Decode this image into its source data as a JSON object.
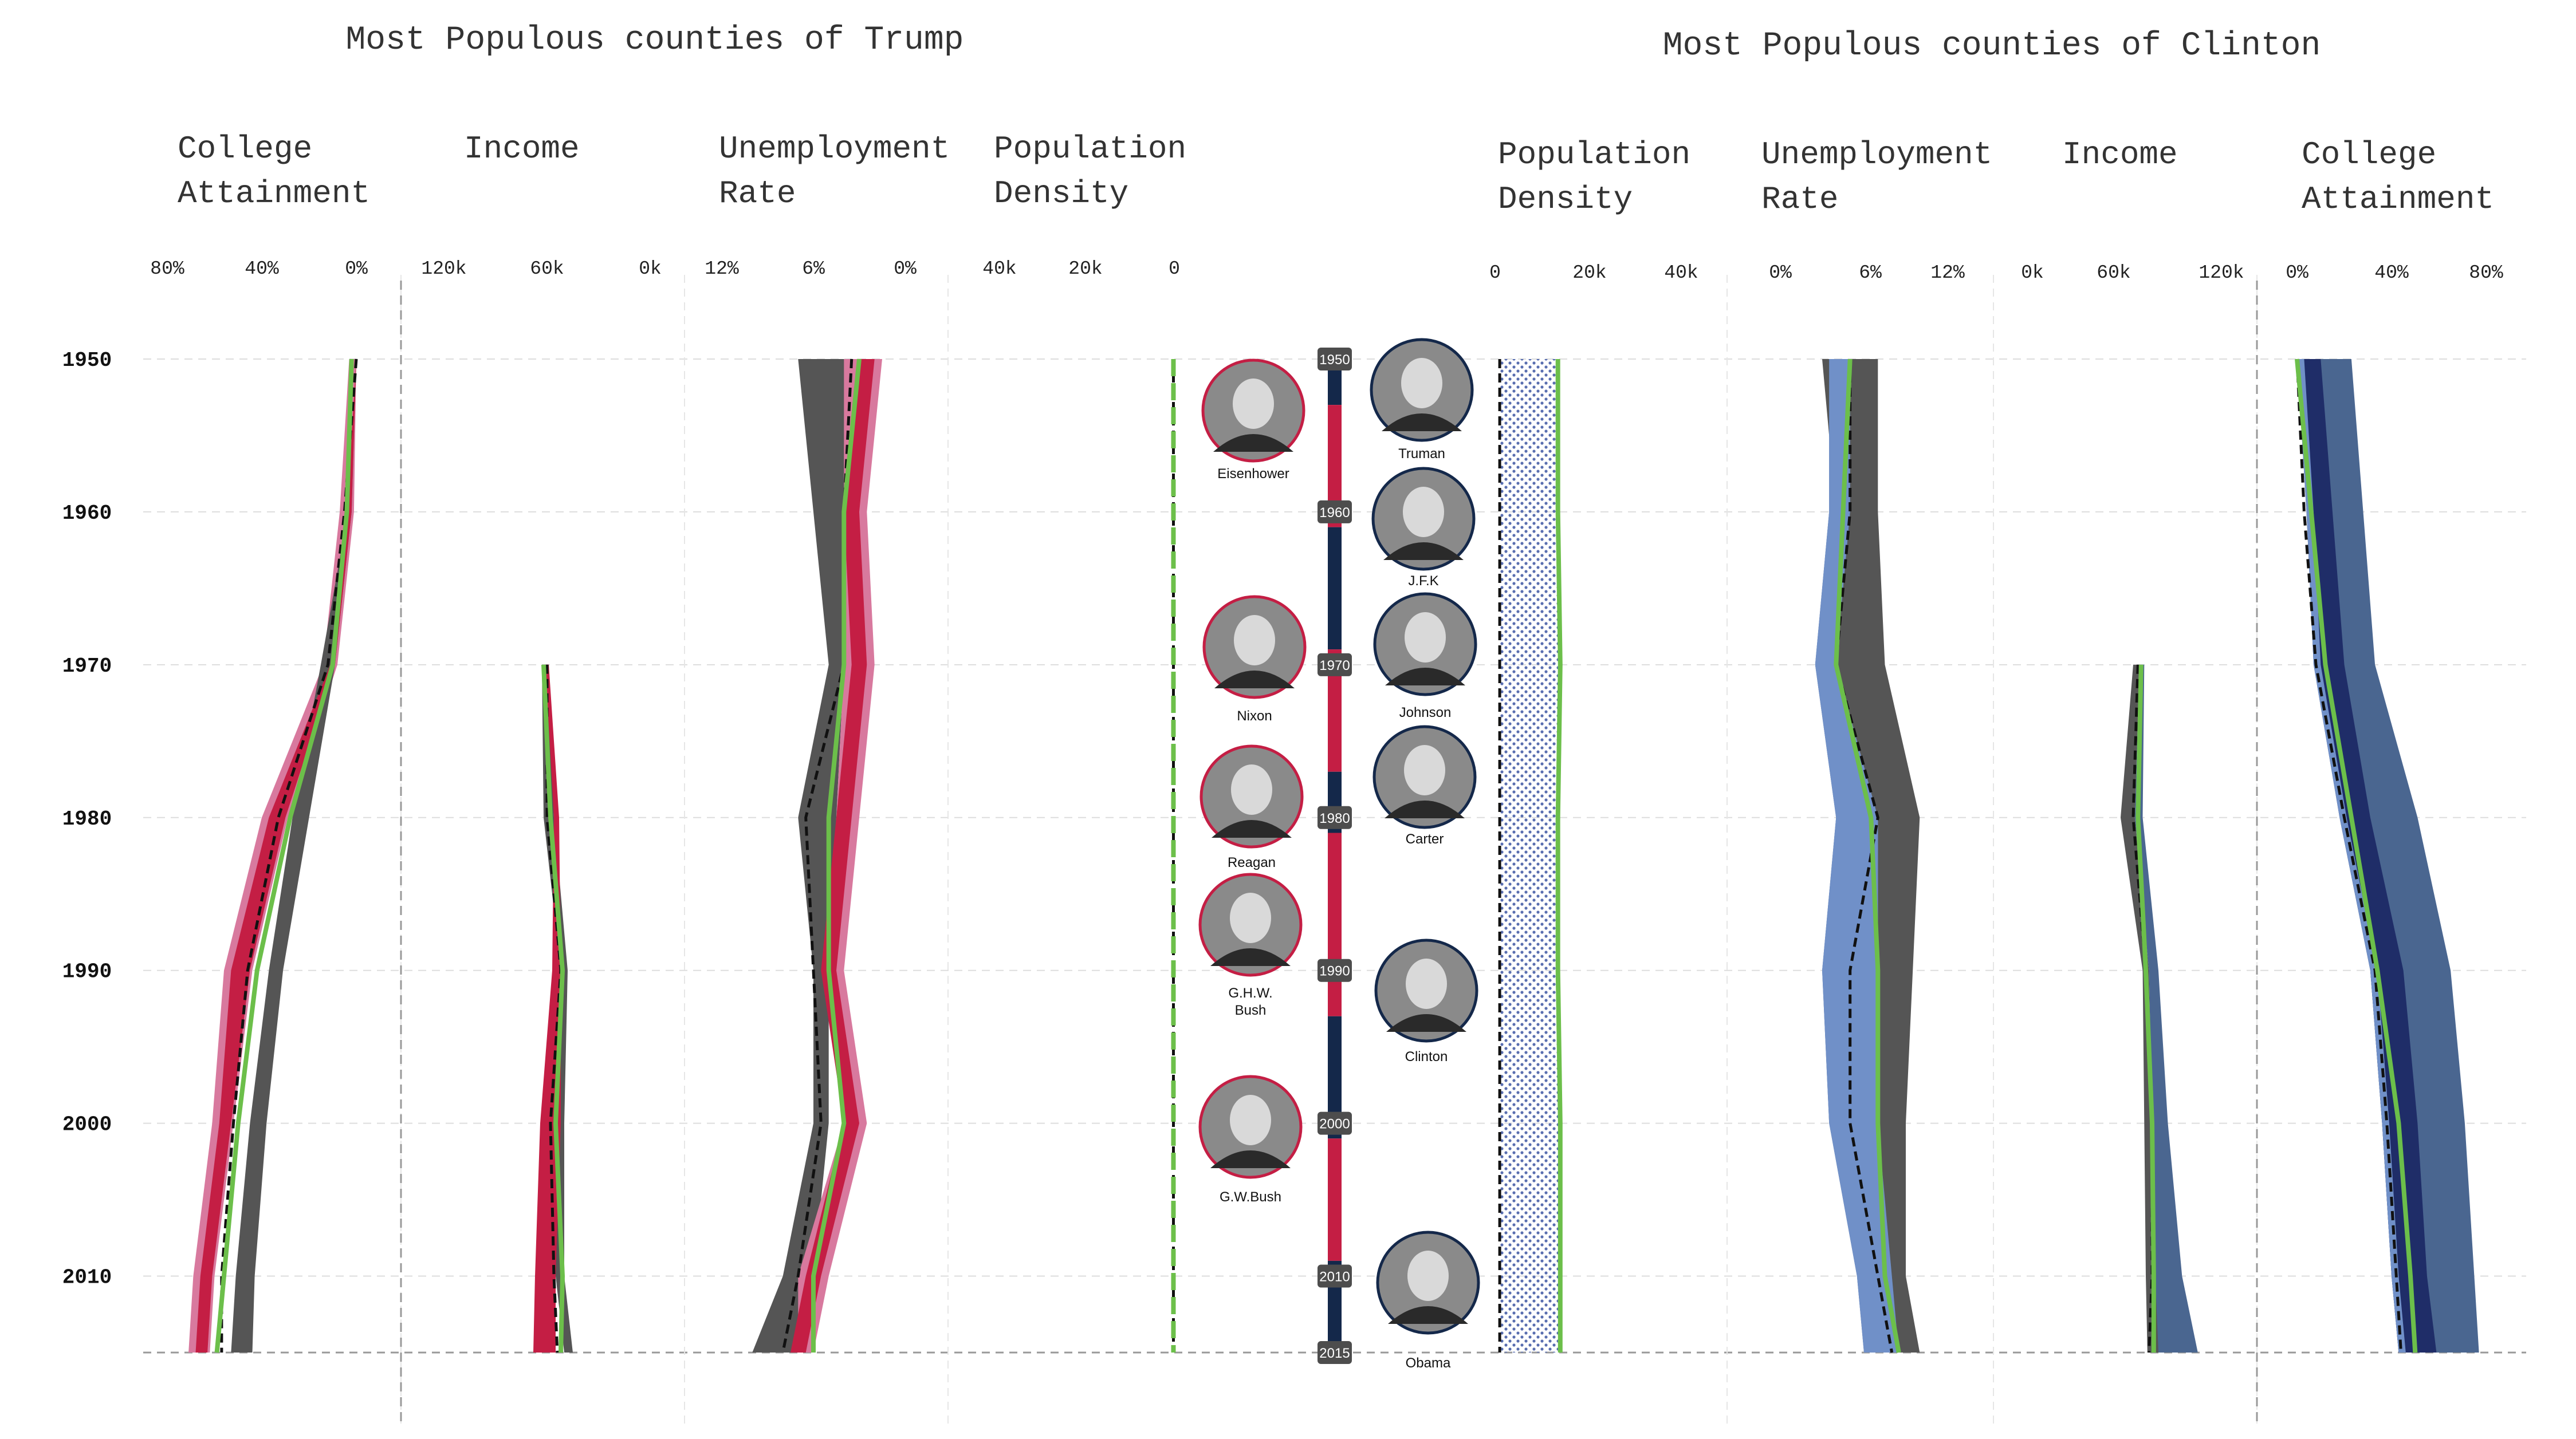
{
  "titles": {
    "trump": "Most Populous counties of Trump",
    "clinton": "Most Populous counties of Clinton"
  },
  "colors": {
    "trump_dark": "#c41e44",
    "trump_light": "#d8799e",
    "clinton_dark": "#1f2d68",
    "clinton_light": "#7090c8",
    "clinton_mid": "#4a6690",
    "us_gray": "#555555",
    "median_green": "#6cbf4a",
    "timeline_red": "#c41e44",
    "timeline_navy": "#14284a",
    "dots_blue": "#5a6fb0"
  },
  "years": [
    1950,
    1960,
    1970,
    1980,
    1990,
    2000,
    2010,
    2015
  ],
  "year_labels": [
    "1950",
    "1960",
    "1970",
    "1980",
    "1990",
    "2000",
    "2010"
  ],
  "year_badges": [
    "1950",
    "1960",
    "1970",
    "1980",
    "1990",
    "2000",
    "2010",
    "2015"
  ],
  "chart_data": [
    {
      "type": "area",
      "group": "Trump",
      "title": "College Attainment",
      "ticks": [
        "80%",
        "40%",
        "0%"
      ],
      "domain": [
        80,
        0
      ],
      "us_band": [
        [
          0,
          0.01
        ],
        [
          2,
          3.5
        ],
        [
          9,
          15
        ],
        [
          20,
          27
        ],
        [
          31,
          37
        ],
        [
          38,
          45
        ],
        [
          43,
          51
        ],
        [
          44,
          53
        ]
      ],
      "county_band": [
        [
          0,
          0.01
        ],
        [
          2,
          4
        ],
        [
          9,
          11
        ],
        [
          30,
          37
        ],
        [
          45,
          53
        ],
        [
          53,
          58
        ],
        [
          61,
          66
        ],
        [
          63,
          68
        ]
      ],
      "dashed": [
        0,
        5,
        12,
        33,
        46,
        52,
        57,
        57
      ],
      "median": [
        2,
        4,
        10,
        28,
        42,
        50,
        56,
        59
      ]
    },
    {
      "type": "area",
      "group": "Trump",
      "title": "Income",
      "ticks": [
        "120k",
        "60k",
        "0k"
      ],
      "domain": [
        120,
        0
      ],
      "us_band": [
        null,
        null,
        [
          59,
          63
        ],
        [
          56,
          62
        ],
        [
          48,
          52
        ],
        [
          50,
          56
        ],
        [
          50,
          55
        ],
        [
          45,
          50
        ]
      ],
      "county_band": [
        null,
        null,
        [
          59,
          61
        ],
        [
          53,
          56
        ],
        [
          52,
          57
        ],
        [
          52,
          64
        ],
        [
          55,
          67
        ],
        [
          55,
          68
        ]
      ],
      "dashed": [
        null,
        null,
        [
          60
        ],
        [
          60
        ],
        [
          52
        ],
        [
          58
        ],
        [
          56
        ],
        [
          54
        ]
      ],
      "median": [
        null,
        null,
        62,
        58,
        51,
        55,
        51,
        52
      ]
    },
    {
      "type": "area",
      "group": "Trump",
      "title": "Unemployment Rate",
      "ticks": [
        "12%",
        "6%",
        "0%"
      ],
      "domain": [
        12,
        0
      ],
      "us_band": [
        [
          3,
          7
        ],
        [
          3,
          6
        ],
        [
          4,
          5
        ],
        [
          4.5,
          7
        ],
        [
          5,
          6
        ],
        [
          5,
          6
        ],
        [
          6,
          8
        ],
        [
          6,
          10
        ]
      ],
      "county_band": [
        [
          1.5,
          4
        ],
        [
          2.5,
          4
        ],
        [
          2,
          4
        ],
        [
          3,
          4.5
        ],
        [
          4,
          5
        ],
        [
          2.5,
          4
        ],
        [
          5,
          7
        ],
        [
          6,
          7
        ]
      ],
      "dashed": [
        3.5,
        4,
        4,
        6.5,
        6,
        5.5,
        7,
        8
      ],
      "median": [
        3,
        4,
        4,
        5,
        5,
        4,
        6,
        6
      ],
      "xlabel": "Rate"
    },
    {
      "type": "line",
      "group": "Trump",
      "title": "Population Density",
      "ticks": [
        "40k",
        "20k",
        "0"
      ],
      "domain": [
        40,
        0
      ],
      "median": [
        0.2,
        0.2,
        0.2,
        0.2,
        0.2,
        0.2,
        0.2,
        0.2
      ],
      "dashed": [
        0.2,
        0.2,
        0.2,
        0.2,
        0.2,
        0.2,
        0.2,
        0.2
      ]
    },
    {
      "type": "line",
      "group": "Clinton",
      "title": "Population Density",
      "ticks": [
        "0",
        "20k",
        "40k"
      ],
      "domain": [
        0,
        40
      ],
      "dotted_band": [
        [
          1,
          13.5
        ],
        [
          1,
          13.5
        ],
        [
          1,
          14
        ],
        [
          1,
          13.5
        ],
        [
          1,
          13.5
        ],
        [
          1,
          14
        ],
        [
          1,
          14
        ],
        [
          1,
          14
        ]
      ],
      "median": [
        13.5,
        13.5,
        14,
        13.5,
        13.5,
        14,
        14,
        14
      ],
      "dashed": [
        1,
        1,
        1,
        1,
        1,
        1,
        1,
        1
      ]
    },
    {
      "type": "area",
      "group": "Clinton",
      "title": "Unemployment Rate",
      "ticks": [
        "0%",
        "6%",
        "12%"
      ],
      "domain": [
        0,
        12
      ],
      "us_band": [
        [
          3,
          7
        ],
        [
          4,
          7
        ],
        [
          4,
          7.5
        ],
        [
          7,
          10
        ],
        [
          7,
          9.5
        ],
        [
          6,
          9
        ],
        [
          7,
          9
        ],
        [
          7,
          10
        ]
      ],
      "county_band": [
        [
          3.5,
          5
        ],
        [
          3.5,
          5
        ],
        [
          2.5,
          4
        ],
        [
          4,
          7
        ],
        [
          3,
          7
        ],
        [
          3.5,
          7
        ],
        [
          5.5,
          8
        ],
        [
          6,
          8.5
        ]
      ],
      "outer_band": [
        [
          3.5,
          5
        ],
        [
          3.5,
          5
        ],
        [
          2.5,
          4
        ],
        [
          4,
          7
        ],
        [
          3,
          7
        ],
        [
          3.5,
          7
        ],
        [
          5.5,
          8
        ],
        [
          6,
          8.5
        ]
      ],
      "dashed": [
        5,
        5,
        4,
        7,
        5,
        5,
        7,
        8
      ],
      "median": [
        5,
        4.5,
        4,
        6.5,
        7,
        7,
        7.5,
        8.5
      ]
    },
    {
      "type": "area",
      "group": "Clinton",
      "title": "Income",
      "ticks": [
        "0k",
        "60k",
        "120k"
      ],
      "domain": [
        0,
        120
      ],
      "us_band": [
        null,
        null,
        [
          64,
          68
        ],
        [
          56,
          65
        ],
        [
          70,
          74
        ],
        [
          71,
          76
        ],
        [
          72,
          78
        ],
        [
          73,
          82
        ]
      ],
      "county_band": [
        null,
        null,
        [
          68,
          71
        ],
        [
          65,
          70
        ],
        [
          74,
          80
        ],
        [
          76,
          86
        ],
        [
          78,
          95
        ],
        [
          80,
          105
        ]
      ],
      "dashed": [
        null,
        null,
        [
          67
        ],
        [
          64
        ],
        [
          72
        ],
        [
          76
        ],
        [
          76
        ],
        [
          74
        ]
      ],
      "median": [
        null,
        null,
        69,
        67,
        72,
        76,
        77,
        77
      ]
    },
    {
      "type": "area",
      "group": "Clinton",
      "title": "College Attainment",
      "ticks": [
        "0%",
        "40%",
        "80%"
      ],
      "domain": [
        0,
        80
      ],
      "outer_band": [
        [
          0,
          23
        ],
        [
          5,
          28
        ],
        [
          8,
          33
        ],
        [
          18,
          51
        ],
        [
          31,
          65
        ],
        [
          36,
          71
        ],
        [
          40,
          75
        ],
        [
          43,
          77
        ]
      ],
      "county_band": [
        [
          0,
          10
        ],
        [
          4,
          15
        ],
        [
          7,
          20
        ],
        [
          18,
          31
        ],
        [
          31,
          45
        ],
        [
          36,
          51
        ],
        [
          40,
          55
        ],
        [
          43,
          59
        ]
      ],
      "dashed": [
        0,
        3,
        8,
        20,
        33,
        38,
        42,
        44
      ],
      "median": [
        0,
        6,
        12,
        23,
        34,
        43,
        48,
        50
      ]
    }
  ],
  "panel_titles": [
    [
      "College",
      "Attainment"
    ],
    [
      "Income"
    ],
    [
      "Unemployment",
      "Rate"
    ],
    [
      "Population",
      "Density"
    ],
    [
      "Population",
      "Density"
    ],
    [
      "Unemployment",
      "Rate"
    ],
    [
      "Income"
    ],
    [
      "College",
      "Attainment"
    ]
  ],
  "presidents": [
    {
      "name": "Eisenhower",
      "party": "R",
      "label": [
        "Eisenhower"
      ]
    },
    {
      "name": "Truman",
      "party": "D",
      "label": [
        "Truman"
      ]
    },
    {
      "name": "J.F.K",
      "party": "D",
      "label": [
        "J.F.K"
      ]
    },
    {
      "name": "Nixon",
      "party": "R",
      "label": [
        "Nixon"
      ]
    },
    {
      "name": "Johnson",
      "party": "D",
      "label": [
        "Johnson"
      ]
    },
    {
      "name": "Carter",
      "party": "D",
      "label": [
        "Carter"
      ]
    },
    {
      "name": "Reagan",
      "party": "R",
      "label": [
        "Reagan"
      ]
    },
    {
      "name": "G.H.W. Bush",
      "party": "R",
      "label": [
        "G.H.W.",
        "Bush"
      ]
    },
    {
      "name": "Clinton",
      "party": "D",
      "label": [
        "Clinton"
      ]
    },
    {
      "name": "G.W.Bush",
      "party": "R",
      "label": [
        "G.W.Bush"
      ]
    },
    {
      "name": "Obama",
      "party": "D",
      "label": [
        "Obama"
      ]
    }
  ],
  "timeline_segments": [
    {
      "from": 1950,
      "to": 1953,
      "party": "D"
    },
    {
      "from": 1953,
      "to": 1961,
      "party": "R"
    },
    {
      "from": 1961,
      "to": 1969,
      "party": "D"
    },
    {
      "from": 1969,
      "to": 1977,
      "party": "R"
    },
    {
      "from": 1977,
      "to": 1981,
      "party": "D"
    },
    {
      "from": 1981,
      "to": 1993,
      "party": "R"
    },
    {
      "from": 1993,
      "to": 2001,
      "party": "D"
    },
    {
      "from": 2001,
      "to": 2009,
      "party": "R"
    },
    {
      "from": 2009,
      "to": 2015,
      "party": "D"
    }
  ]
}
